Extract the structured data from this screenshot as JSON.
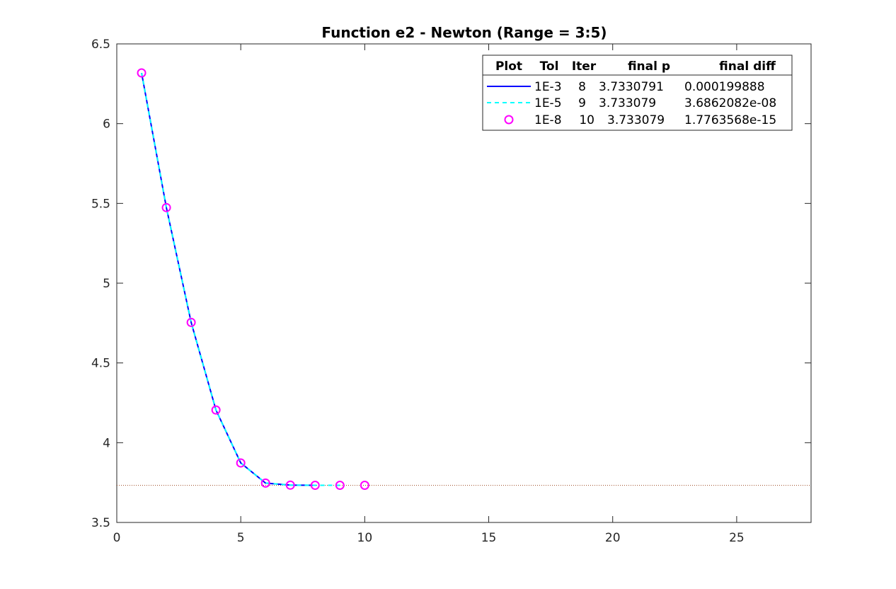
{
  "chart_data": {
    "type": "line",
    "title": "Function e2 - Newton (Range = 3:5)",
    "xlabel": "",
    "ylabel": "",
    "xlim": [
      0,
      28
    ],
    "ylim": [
      3.5,
      6.5
    ],
    "xticks": [
      0,
      5,
      10,
      15,
      20,
      25
    ],
    "yticks": [
      3.5,
      4,
      4.5,
      5,
      5.5,
      6,
      6.5
    ],
    "xtick_labels": [
      "0",
      "5",
      "10",
      "15",
      "20",
      "25"
    ],
    "ytick_labels": [
      "3.5",
      "4",
      "4.5",
      "5",
      "5.5",
      "6",
      "6.5"
    ],
    "grid": false,
    "reference_line": {
      "y": 3.733079,
      "color": "#a0522d",
      "style": "dotted"
    },
    "legend": {
      "placement": "top-right",
      "headers": [
        "Plot",
        "Tol",
        "Iter",
        "final p",
        "final diff"
      ],
      "rows": [
        {
          "tol": "1E-3",
          "iter": "8",
          "final_p": "3.7330791",
          "final_diff": "0.000199888"
        },
        {
          "tol": "1E-5",
          "iter": "9",
          "final_p": "3.733079",
          "final_diff": "3.6862082e-08"
        },
        {
          "tol": "1E-8",
          "iter": "10",
          "final_p": "3.733079",
          "final_diff": "1.7763568e-15"
        }
      ]
    },
    "series": [
      {
        "style": "solid",
        "color": "#0000ff",
        "marker": "none",
        "x": [
          1,
          2,
          3,
          4,
          5,
          6,
          7,
          8
        ],
        "y": [
          6.318,
          5.474,
          4.754,
          4.205,
          3.873,
          3.747,
          3.734,
          3.733
        ]
      },
      {
        "style": "dashed",
        "color": "#00ffff",
        "marker": "none",
        "x": [
          1,
          2,
          3,
          4,
          5,
          6,
          7,
          8,
          9
        ],
        "y": [
          6.318,
          5.474,
          4.754,
          4.205,
          3.873,
          3.747,
          3.734,
          3.733,
          3.733
        ]
      },
      {
        "style": "none",
        "color": "#ff00ff",
        "marker": "circle",
        "x": [
          1,
          2,
          3,
          4,
          5,
          6,
          7,
          8,
          9,
          10
        ],
        "y": [
          6.318,
          5.474,
          4.754,
          4.205,
          3.873,
          3.747,
          3.734,
          3.733,
          3.733,
          3.733
        ]
      }
    ]
  }
}
